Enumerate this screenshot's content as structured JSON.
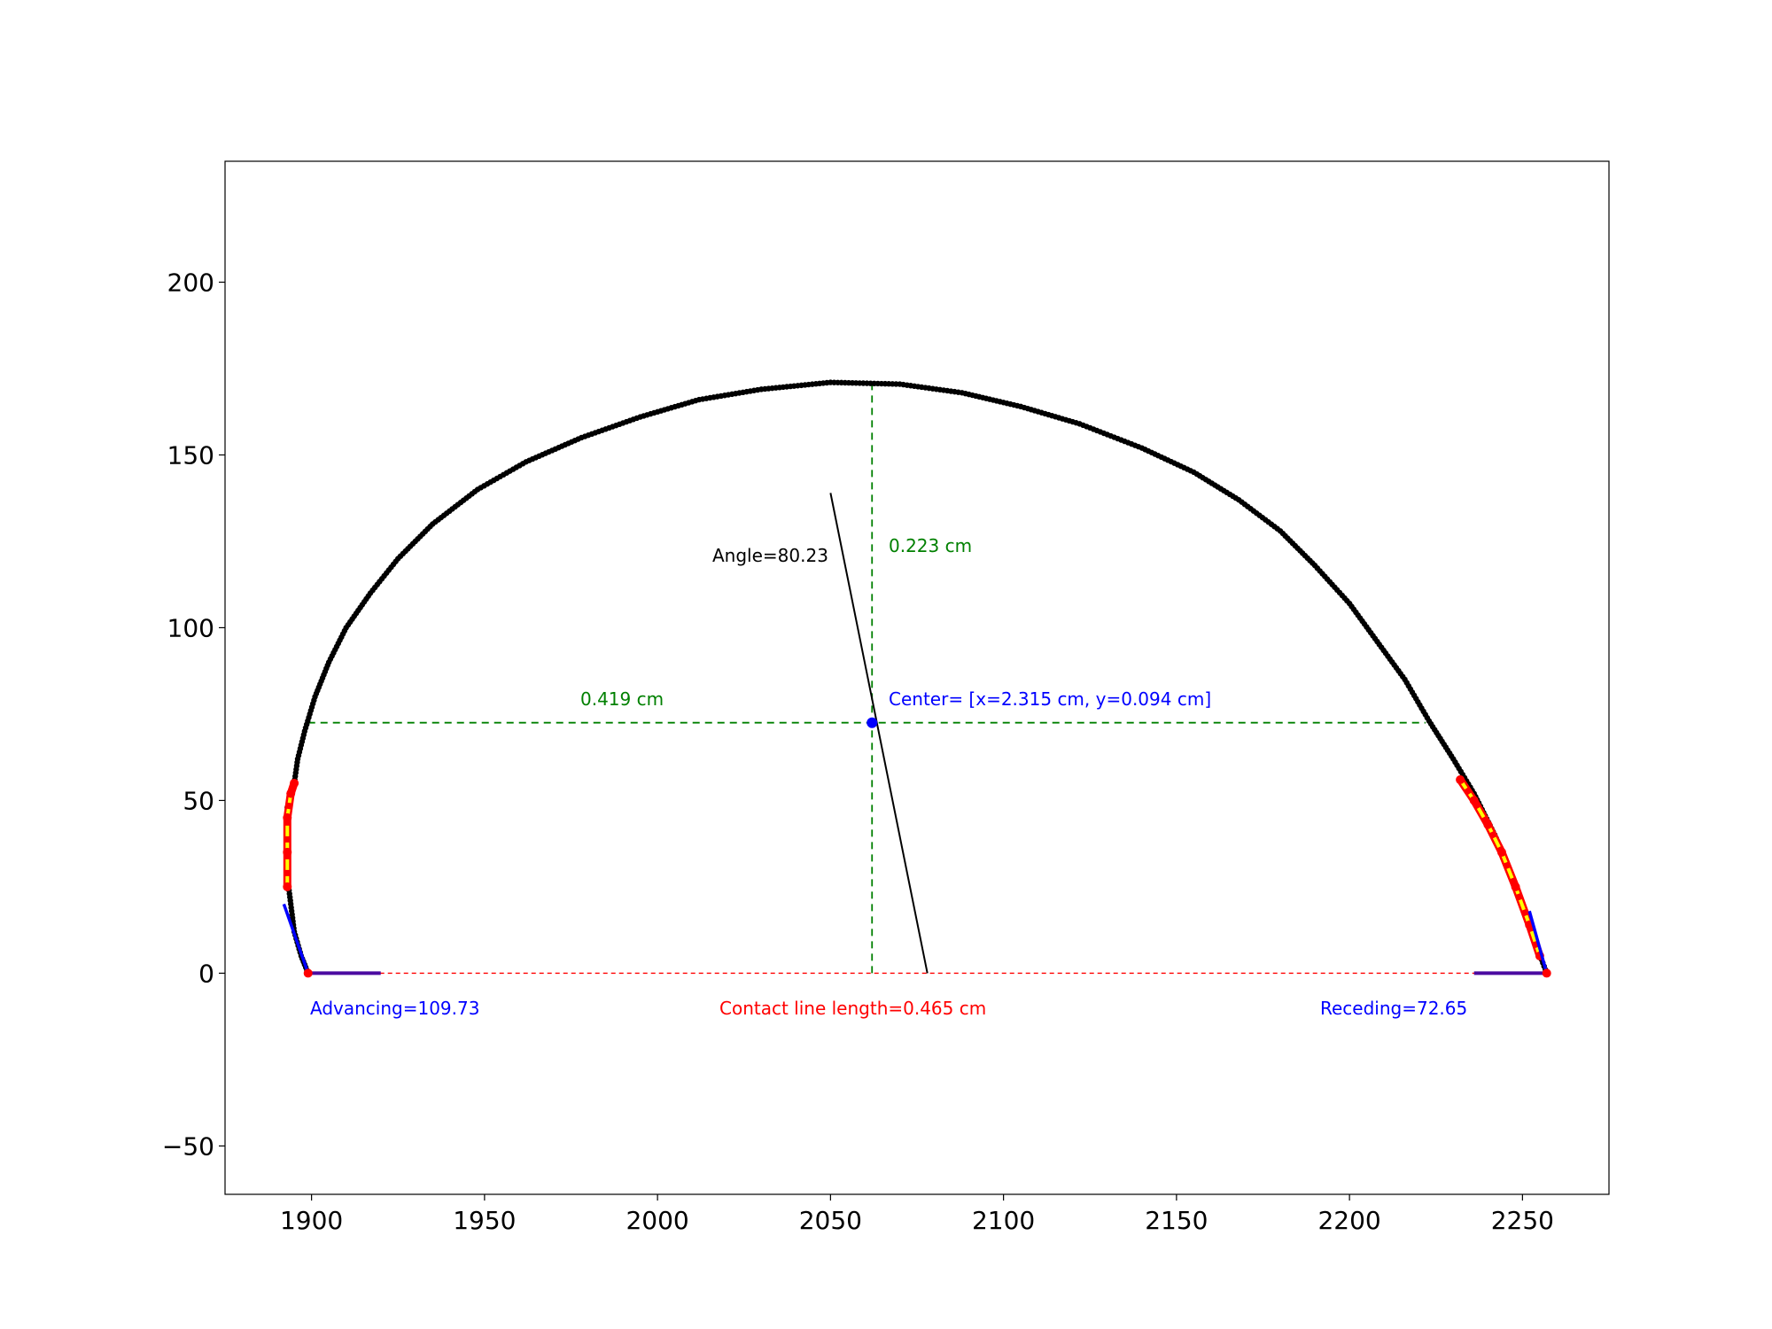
{
  "chart_data": {
    "type": "scatter",
    "title": "",
    "xlabel": "",
    "ylabel": "",
    "xlim": [
      1875,
      2275
    ],
    "ylim": [
      -64,
      235
    ],
    "grid": false,
    "x_ticks": [
      1900,
      1950,
      2000,
      2050,
      2100,
      2150,
      2200,
      2250
    ],
    "y_ticks": [
      -50,
      0,
      50,
      100,
      150,
      200
    ],
    "x_tick_labels": [
      "1900",
      "1950",
      "2000",
      "2050",
      "2100",
      "2150",
      "2200",
      "2250"
    ],
    "y_tick_labels": [
      "−50",
      "0",
      "50",
      "100",
      "150",
      "200"
    ],
    "series": [
      {
        "marker": "dot",
        "color": "#000000",
        "profile_points": [
          [
            1899,
            0
          ],
          [
            1897,
            5
          ],
          [
            1895,
            12
          ],
          [
            1894,
            20
          ],
          [
            1893,
            28
          ],
          [
            1893,
            38
          ],
          [
            1893,
            48
          ],
          [
            1895,
            55
          ],
          [
            1896,
            62
          ],
          [
            1898,
            70
          ],
          [
            1901,
            80
          ],
          [
            1905,
            90
          ],
          [
            1910,
            100
          ],
          [
            1917,
            110
          ],
          [
            1925,
            120
          ],
          [
            1935,
            130
          ],
          [
            1948,
            140
          ],
          [
            1962,
            148
          ],
          [
            1978,
            155
          ],
          [
            1995,
            161
          ],
          [
            2012,
            166
          ],
          [
            2030,
            169
          ],
          [
            2050,
            171
          ],
          [
            2070,
            170.5
          ],
          [
            2088,
            168
          ],
          [
            2105,
            164
          ],
          [
            2122,
            159
          ],
          [
            2140,
            152
          ],
          [
            2155,
            145
          ],
          [
            2168,
            137
          ],
          [
            2180,
            128
          ],
          [
            2190,
            118
          ],
          [
            2200,
            107
          ],
          [
            2208,
            96
          ],
          [
            2216,
            85
          ],
          [
            2223,
            73
          ],
          [
            2230,
            62
          ],
          [
            2236,
            52
          ],
          [
            2242,
            40
          ],
          [
            2247,
            28
          ],
          [
            2251,
            17
          ],
          [
            2254,
            8
          ],
          [
            2257,
            0
          ]
        ]
      },
      {
        "name": "",
        "color": "#ff0000",
        "left_fit_points": [
          [
            1893,
            25
          ],
          [
            1893,
            35
          ],
          [
            1893,
            45
          ],
          [
            1894,
            52
          ],
          [
            1895,
            55
          ]
        ],
        "right_fit_points": [
          [
            2232,
            56
          ],
          [
            2236,
            50
          ],
          [
            2240,
            43
          ],
          [
            2244,
            35
          ],
          [
            2248,
            25
          ],
          [
            2252,
            14
          ],
          [
            2255,
            5
          ]
        ]
      }
    ],
    "left_tangent": [
      [
        1892,
        20
      ],
      [
        1899,
        0
      ]
    ],
    "right_tangent": [
      [
        2252,
        18
      ],
      [
        2257,
        0
      ]
    ],
    "baseline_left": [
      [
        1899,
        0
      ],
      [
        1920,
        0
      ]
    ],
    "baseline_right": [
      [
        2236,
        0
      ],
      [
        2257,
        0
      ]
    ],
    "contact_line": [
      [
        1899,
        0
      ],
      [
        2257,
        0
      ]
    ],
    "center": [
      2062,
      72.5
    ],
    "vertical_line": [
      [
        2062,
        0
      ],
      [
        2062,
        171
      ]
    ],
    "horizontal_line": [
      [
        1899,
        72.5
      ],
      [
        2222,
        72.5
      ]
    ],
    "angle_line": [
      [
        2050,
        139
      ],
      [
        2078,
        0
      ]
    ],
    "colors": {
      "profile": "#000000",
      "fit": "#ff0000",
      "fit_dash": "#ffff00",
      "tangent": "#0000ff",
      "guide": "#008000",
      "contact": "#ff0000",
      "center": "#0000ff",
      "angle": "#000000"
    }
  },
  "annotations": {
    "angle": "Angle=80.23",
    "height": "0.223 cm",
    "radius": "0.419 cm",
    "center": "Center= [x=2.315 cm, y=0.094 cm]",
    "advancing": "Advancing=109.73",
    "contact": "Contact line length=0.465 cm",
    "receding": "Receding=72.65"
  }
}
